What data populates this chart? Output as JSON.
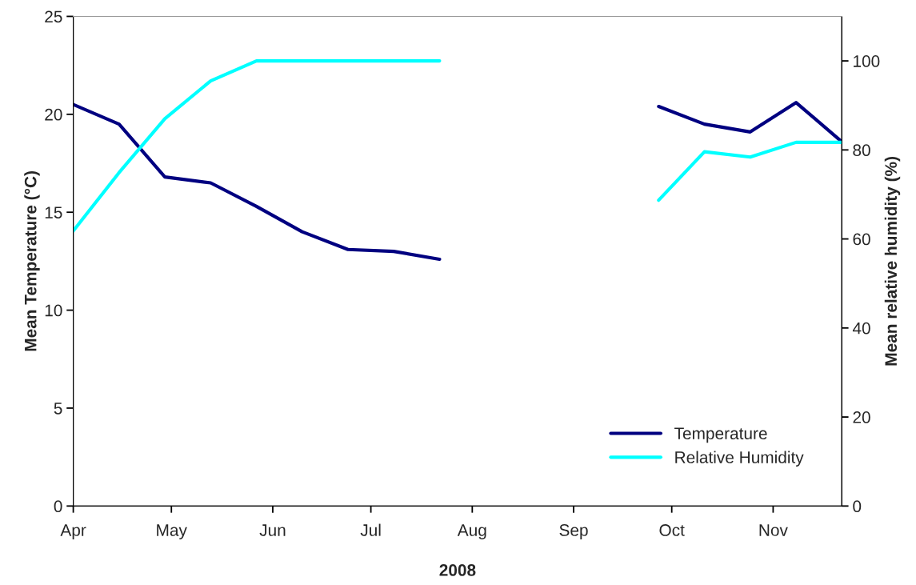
{
  "chart_data": {
    "type": "line",
    "xlabel": "2008",
    "ylabel": "Mean Temperature (°C)",
    "y2label": "Mean relative humidity (%)",
    "x": [
      "2008-04-01",
      "2008-04-15",
      "2008-04-29",
      "2008-05-13",
      "2008-05-27",
      "2008-06-10",
      "2008-06-24",
      "2008-07-08",
      "2008-07-22",
      "2008-08-05",
      "2008-08-19",
      "2008-09-02",
      "2008-09-16",
      "2008-09-27",
      "2008-10-11",
      "2008-10-25",
      "2008-11-08",
      "2008-11-22"
    ],
    "series": [
      {
        "name": "Temperature",
        "color": "#000080",
        "values": [
          20.5,
          19.5,
          16.8,
          16.5,
          15.3,
          14.0,
          13.1,
          13.0,
          12.6,
          null,
          null,
          null,
          null,
          20.4,
          19.5,
          19.1,
          20.6,
          18.6
        ]
      },
      {
        "name": "Relative Humidity",
        "color": "#00ffff",
        "axis": "y2",
        "values": [
          61.8,
          74.9,
          87.0,
          95.5,
          100,
          100,
          100,
          100,
          100,
          null,
          null,
          null,
          null,
          68.7,
          79.6,
          78.4,
          81.7,
          81.7
        ]
      }
    ],
    "xlim": [
      "2008-04-01",
      "2008-11-22"
    ],
    "xticks": [
      {
        "value": "2008-04-01",
        "label": "Apr"
      },
      {
        "value": "2008-05-01",
        "label": "May"
      },
      {
        "value": "2008-06-01",
        "label": "Jun"
      },
      {
        "value": "2008-07-01",
        "label": "Jul"
      },
      {
        "value": "2008-08-01",
        "label": "Aug"
      },
      {
        "value": "2008-09-01",
        "label": "Sep"
      },
      {
        "value": "2008-10-01",
        "label": "Oct"
      },
      {
        "value": "2008-11-01",
        "label": "Nov"
      }
    ],
    "ylim": [
      0,
      25
    ],
    "yticks": [
      0,
      5,
      10,
      15,
      20,
      25
    ],
    "y2lim": [
      0,
      110
    ],
    "y2ticks": [
      0,
      20,
      40,
      60,
      80,
      100
    ],
    "legend": "bottom right",
    "grid": false
  }
}
